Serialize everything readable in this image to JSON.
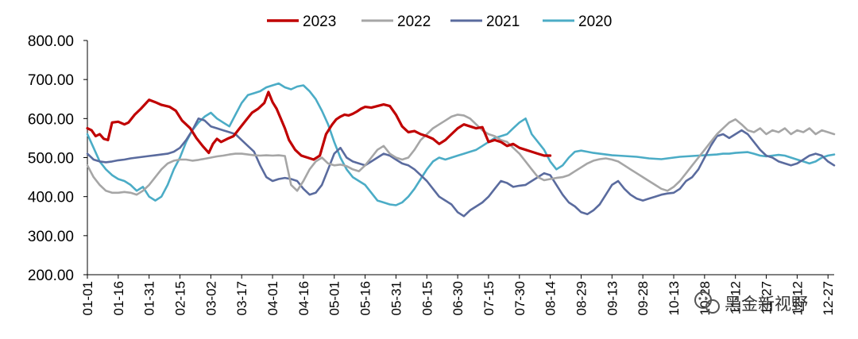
{
  "chart_data": {
    "type": "line",
    "title": "",
    "xlabel": "",
    "ylabel": "",
    "ylim": [
      200,
      800
    ],
    "yticks": [
      "200.00",
      "300.00",
      "400.00",
      "500.00",
      "600.00",
      "700.00",
      "800.00"
    ],
    "xticks": [
      "01-01",
      "01-16",
      "01-31",
      "02-15",
      "03-02",
      "03-17",
      "04-01",
      "04-16",
      "05-01",
      "05-16",
      "05-31",
      "06-15",
      "06-30",
      "07-15",
      "07-30",
      "08-14",
      "08-29",
      "09-13",
      "09-28",
      "10-13",
      "10-28",
      "11-12",
      "11-27",
      "12-12",
      "12-27"
    ],
    "grid": false,
    "legend_position": "top",
    "watermark": "黑金新视野",
    "series": [
      {
        "name": "2023",
        "color": "#C00000",
        "x_days": [
          0,
          2,
          4,
          6,
          8,
          10,
          12,
          15,
          18,
          20,
          23,
          26,
          30,
          33,
          36,
          40,
          43,
          46,
          50,
          53,
          56,
          59,
          61,
          63,
          65,
          68,
          71,
          74,
          77,
          80,
          83,
          86,
          88,
          90,
          92,
          94,
          96,
          98,
          101,
          104,
          107,
          110,
          113,
          116,
          119,
          121,
          123,
          125,
          127,
          129,
          131,
          133,
          135,
          138,
          141,
          144,
          147,
          150,
          153,
          156,
          159,
          162,
          165,
          168,
          171,
          174,
          177,
          180,
          183,
          186,
          189,
          192,
          195,
          198,
          201,
          204,
          207,
          210,
          213,
          216,
          219,
          222,
          225
        ],
        "values": [
          575,
          570,
          555,
          560,
          548,
          545,
          590,
          592,
          585,
          590,
          610,
          625,
          648,
          642,
          635,
          630,
          620,
          595,
          575,
          550,
          530,
          512,
          535,
          548,
          540,
          548,
          555,
          575,
          595,
          615,
          625,
          640,
          668,
          642,
          625,
          600,
          575,
          545,
          520,
          505,
          500,
          495,
          505,
          560,
          585,
          598,
          605,
          610,
          608,
          612,
          618,
          625,
          630,
          628,
          632,
          636,
          632,
          610,
          580,
          565,
          568,
          560,
          555,
          548,
          535,
          545,
          560,
          575,
          585,
          580,
          575,
          578,
          540,
          545,
          540,
          530,
          535,
          525,
          520,
          515,
          510,
          505,
          505
        ]
      },
      {
        "name": "2022",
        "color": "#A6A6A6",
        "x_days": [
          0,
          3,
          6,
          9,
          12,
          15,
          18,
          21,
          24,
          27,
          30,
          33,
          36,
          39,
          42,
          45,
          48,
          51,
          54,
          57,
          60,
          63,
          66,
          69,
          72,
          75,
          78,
          81,
          84,
          87,
          90,
          93,
          96,
          99,
          102,
          105,
          108,
          111,
          114,
          117,
          120,
          123,
          126,
          129,
          132,
          135,
          138,
          141,
          144,
          147,
          150,
          153,
          156,
          159,
          162,
          165,
          168,
          171,
          174,
          177,
          180,
          183,
          186,
          189,
          192,
          195,
          198,
          201,
          204,
          207,
          210,
          213,
          216,
          219,
          222,
          225,
          228,
          231,
          234,
          237,
          240,
          243,
          246,
          249,
          252,
          255,
          258,
          261,
          264,
          267,
          270,
          273,
          276,
          279,
          282,
          285,
          288,
          291,
          294,
          297,
          300,
          303,
          306,
          309,
          312,
          315,
          318,
          321,
          324,
          327,
          330,
          333,
          336,
          339,
          342,
          345,
          348,
          351,
          354,
          357,
          360,
          363
        ],
        "values": [
          480,
          450,
          430,
          415,
          410,
          410,
          412,
          410,
          405,
          415,
          430,
          450,
          470,
          485,
          492,
          495,
          495,
          492,
          494,
          497,
          500,
          503,
          505,
          508,
          510,
          510,
          508,
          506,
          505,
          506,
          505,
          506,
          504,
          430,
          415,
          440,
          470,
          490,
          500,
          485,
          480,
          482,
          478,
          470,
          465,
          480,
          500,
          520,
          530,
          510,
          500,
          495,
          500,
          520,
          545,
          560,
          575,
          585,
          595,
          605,
          610,
          608,
          600,
          585,
          570,
          560,
          555,
          545,
          540,
          525,
          510,
          490,
          470,
          450,
          442,
          445,
          448,
          450,
          455,
          465,
          475,
          485,
          492,
          496,
          498,
          495,
          490,
          480,
          470,
          460,
          450,
          440,
          430,
          420,
          415,
          425,
          440,
          460,
          480,
          500,
          520,
          540,
          560,
          575,
          590,
          598,
          585,
          570,
          565,
          575,
          560,
          570,
          565,
          575,
          560,
          570,
          565,
          575,
          560,
          570,
          565,
          560
        ]
      },
      {
        "name": "2021",
        "color": "#5A6B9E",
        "x_days": [
          0,
          3,
          6,
          9,
          12,
          15,
          18,
          21,
          24,
          27,
          30,
          33,
          36,
          39,
          42,
          45,
          48,
          51,
          54,
          57,
          60,
          63,
          66,
          69,
          72,
          75,
          78,
          81,
          84,
          87,
          90,
          93,
          96,
          99,
          102,
          105,
          108,
          111,
          114,
          117,
          120,
          123,
          126,
          129,
          132,
          135,
          138,
          141,
          144,
          147,
          150,
          153,
          156,
          159,
          162,
          165,
          168,
          171,
          174,
          177,
          180,
          183,
          186,
          189,
          192,
          195,
          198,
          201,
          204,
          207,
          210,
          213,
          216,
          219,
          222,
          225,
          228,
          231,
          234,
          237,
          240,
          243,
          246,
          249,
          252,
          255,
          258,
          261,
          264,
          267,
          270,
          273,
          276,
          279,
          282,
          285,
          288,
          291,
          294,
          297,
          300,
          303,
          306,
          309,
          312,
          315,
          318,
          321,
          324,
          327,
          330,
          333,
          336,
          339,
          342,
          345,
          348,
          351,
          354,
          357,
          360,
          363
        ],
        "values": [
          510,
          495,
          490,
          488,
          490,
          493,
          495,
          498,
          500,
          502,
          504,
          506,
          508,
          510,
          515,
          525,
          545,
          570,
          600,
          595,
          580,
          575,
          570,
          565,
          560,
          545,
          530,
          515,
          480,
          450,
          440,
          445,
          448,
          445,
          440,
          420,
          405,
          410,
          430,
          470,
          510,
          525,
          500,
          490,
          485,
          480,
          490,
          500,
          510,
          505,
          495,
          485,
          480,
          470,
          455,
          440,
          420,
          400,
          390,
          380,
          360,
          350,
          365,
          375,
          385,
          400,
          420,
          440,
          435,
          425,
          428,
          430,
          440,
          450,
          460,
          455,
          430,
          405,
          385,
          375,
          360,
          355,
          365,
          380,
          405,
          430,
          440,
          420,
          405,
          395,
          390,
          395,
          400,
          405,
          408,
          410,
          420,
          440,
          450,
          470,
          500,
          530,
          555,
          560,
          550,
          560,
          570,
          560,
          540,
          520,
          505,
          500,
          490,
          485,
          480,
          485,
          495,
          505,
          510,
          505,
          490,
          480
        ]
      },
      {
        "name": "2020",
        "color": "#4BACC6",
        "x_days": [
          0,
          3,
          6,
          9,
          12,
          15,
          18,
          21,
          24,
          27,
          30,
          33,
          36,
          39,
          42,
          45,
          48,
          51,
          54,
          57,
          60,
          63,
          66,
          69,
          72,
          75,
          78,
          81,
          84,
          87,
          90,
          93,
          96,
          99,
          102,
          105,
          108,
          111,
          114,
          117,
          120,
          123,
          126,
          129,
          132,
          135,
          138,
          141,
          144,
          147,
          150,
          153,
          156,
          159,
          162,
          165,
          168,
          171,
          174,
          177,
          180,
          183,
          186,
          189,
          192,
          195,
          198,
          201,
          204,
          207,
          210,
          213,
          216,
          219,
          222,
          225,
          228,
          231,
          234,
          237,
          240,
          243,
          246,
          249,
          252,
          255,
          258,
          261,
          264,
          267,
          270,
          273,
          276,
          279,
          282,
          285,
          288,
          291,
          294,
          297,
          300,
          303,
          306,
          309,
          312,
          315,
          318,
          321,
          324,
          327,
          330,
          333,
          336,
          339,
          342,
          345,
          348,
          351,
          354,
          357,
          360,
          363
        ],
        "values": [
          560,
          525,
          490,
          470,
          455,
          445,
          440,
          430,
          415,
          425,
          400,
          390,
          400,
          430,
          470,
          500,
          540,
          570,
          590,
          605,
          615,
          600,
          590,
          580,
          610,
          640,
          660,
          665,
          670,
          680,
          685,
          690,
          680,
          675,
          682,
          685,
          670,
          650,
          620,
          585,
          540,
          500,
          470,
          450,
          440,
          430,
          410,
          390,
          385,
          380,
          378,
          385,
          400,
          420,
          445,
          470,
          490,
          500,
          495,
          500,
          505,
          510,
          515,
          520,
          530,
          540,
          550,
          555,
          560,
          575,
          590,
          600,
          560,
          540,
          520,
          490,
          470,
          480,
          500,
          515,
          518,
          515,
          512,
          510,
          508,
          506,
          505,
          504,
          503,
          502,
          500,
          498,
          497,
          496,
          498,
          500,
          502,
          503,
          504,
          505,
          506,
          507,
          508,
          510,
          510,
          512,
          513,
          514,
          510,
          505,
          503,
          505,
          507,
          505,
          500,
          495,
          490,
          485,
          490,
          500,
          505,
          508
        ]
      }
    ]
  }
}
